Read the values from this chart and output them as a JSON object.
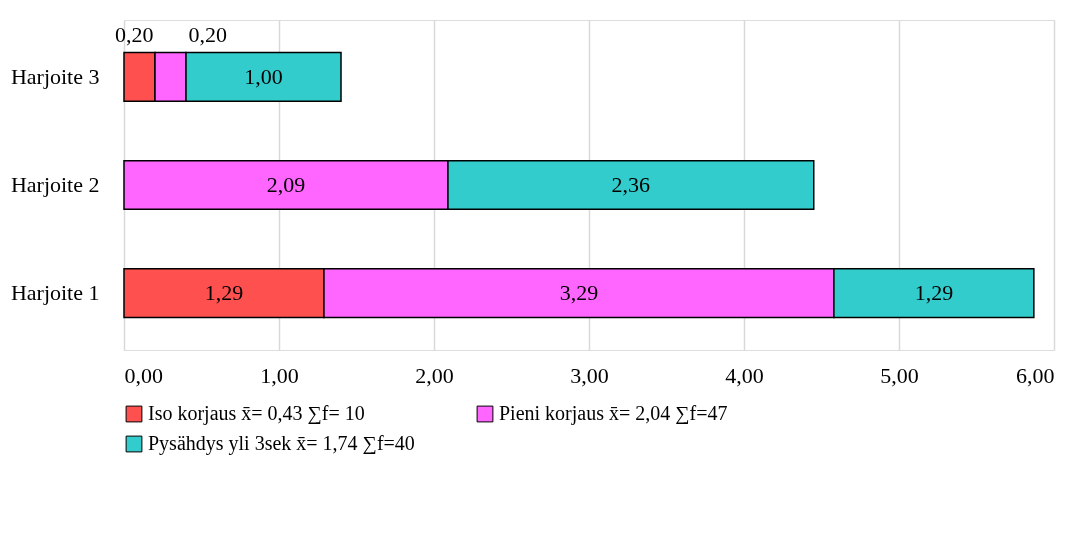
{
  "chart_data": {
    "type": "bar",
    "orientation": "horizontal",
    "stacked": true,
    "categories": [
      "Harjoite 3",
      "Harjoite 2",
      "Harjoite 1"
    ],
    "series": [
      {
        "name": "Iso korjaus x̄= 0,43 ∑f= 10",
        "color": "#ff5050",
        "values": [
          0.2,
          null,
          1.29
        ],
        "value_labels": [
          "0,20",
          null,
          "1,29"
        ]
      },
      {
        "name": "Pieni korjaus x̄= 2,04 ∑f=47",
        "color": "#ff66ff",
        "values": [
          0.2,
          2.09,
          3.29
        ],
        "value_labels": [
          "0,20",
          "2,09",
          "3,29"
        ]
      },
      {
        "name": "Pysähdys yli 3sek x̄= 1,74 ∑f=40",
        "color": "#33cccc",
        "values": [
          1.0,
          2.36,
          1.29
        ],
        "value_labels": [
          "1,00",
          "2,36",
          "1,29"
        ]
      }
    ],
    "xlim": [
      0,
      6
    ],
    "xticks": [
      {
        "value": 0,
        "label": "0,00"
      },
      {
        "value": 1,
        "label": "1,00"
      },
      {
        "value": 2,
        "label": "2,00"
      },
      {
        "value": 3,
        "label": "3,00"
      },
      {
        "value": 4,
        "label": "4,00"
      },
      {
        "value": 5,
        "label": "5,00"
      },
      {
        "value": 6,
        "label": "6,00"
      }
    ],
    "grid": "x",
    "legend": "bottom"
  }
}
